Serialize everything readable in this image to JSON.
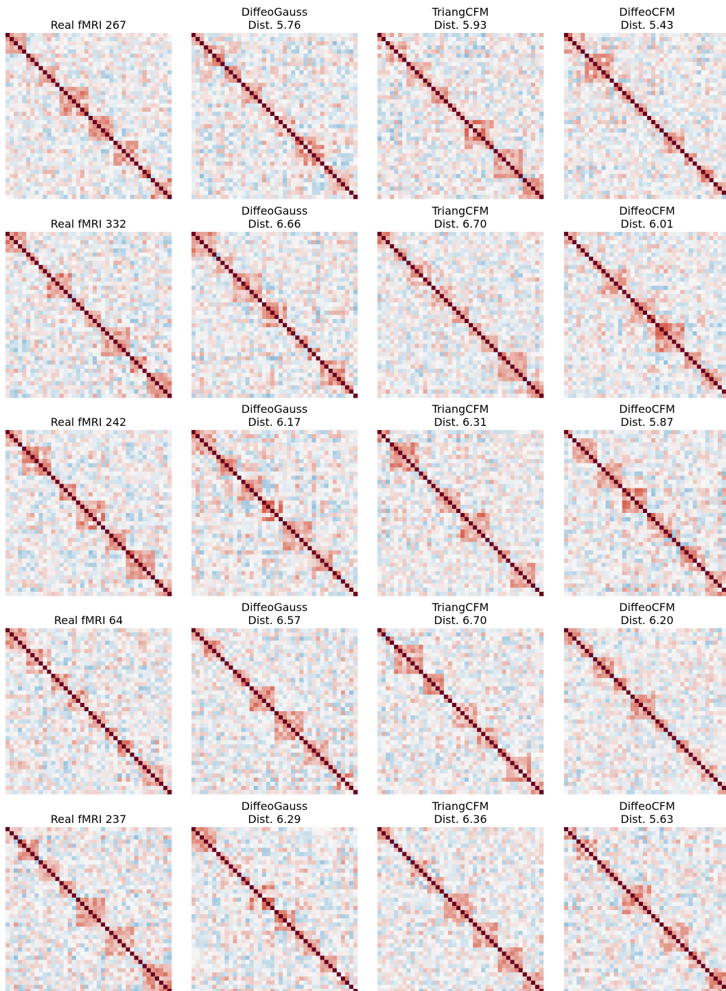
{
  "rows": [
    {
      "real": "Real fMRI 267",
      "panels": [
        {
          "method": "DiffeoGauss",
          "dist": "Dist. 5.76"
        },
        {
          "method": "TriangCFM",
          "dist": "Dist. 5.93"
        },
        {
          "method": "DiffeoCFM",
          "dist": "Dist. 5.43"
        }
      ]
    },
    {
      "real": "Real fMRI 332",
      "panels": [
        {
          "method": "DiffeoGauss",
          "dist": "Dist. 6.66"
        },
        {
          "method": "TriangCFM",
          "dist": "Dist. 6.70"
        },
        {
          "method": "DiffeoCFM",
          "dist": "Dist. 6.01"
        }
      ]
    },
    {
      "real": "Real fMRI 242",
      "panels": [
        {
          "method": "DiffeoGauss",
          "dist": "Dist. 6.17"
        },
        {
          "method": "TriangCFM",
          "dist": "Dist. 6.31"
        },
        {
          "method": "DiffeoCFM",
          "dist": "Dist. 5.87"
        }
      ]
    },
    {
      "real": "Real fMRI 64",
      "panels": [
        {
          "method": "DiffeoGauss",
          "dist": "Dist. 6.57"
        },
        {
          "method": "TriangCFM",
          "dist": "Dist. 6.70"
        },
        {
          "method": "DiffeoCFM",
          "dist": "Dist. 6.20"
        }
      ]
    },
    {
      "real": "Real fMRI 237",
      "panels": [
        {
          "method": "DiffeoGauss",
          "dist": "Dist. 6.29"
        },
        {
          "method": "TriangCFM",
          "dist": "Dist. 6.36"
        },
        {
          "method": "DiffeoCFM",
          "dist": "Dist. 5.63"
        }
      ]
    }
  ]
}
